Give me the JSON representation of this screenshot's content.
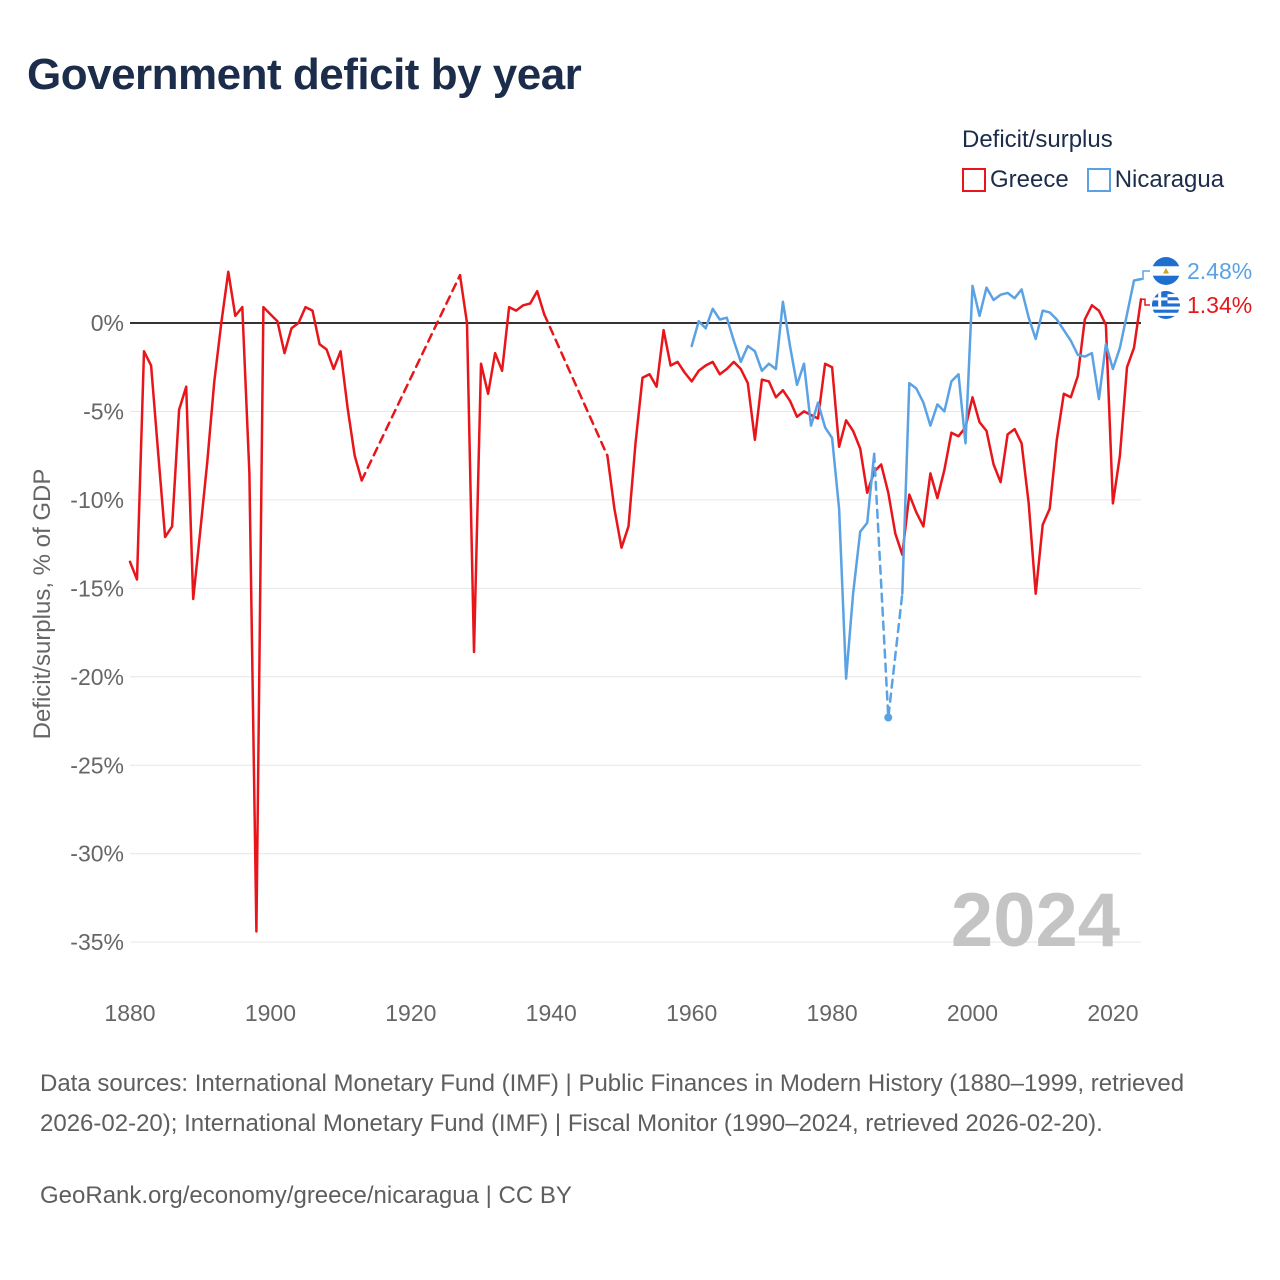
{
  "title": "Government deficit by year",
  "legend": {
    "title": "Deficit/surplus",
    "items": [
      {
        "label": "Greece",
        "color": "#e8161b"
      },
      {
        "label": "Nicaragua",
        "color": "#5ba2e5"
      }
    ]
  },
  "footer": {
    "sources": "Data sources: International Monetary Fund (IMF) | Public Finances in Modern History (1880–1999, retrieved 2026-02-20); International Monetary Fund (IMF) | Fiscal Monitor (1990–2024, retrieved 2026-02-20).",
    "credit": "GeoRank.org/economy/greece/nicaragua | CC BY"
  },
  "chart_data": {
    "type": "line",
    "title": "Government deficit by year",
    "ylabel": "Deficit/surplus, % of GDP",
    "xlabel": "",
    "xlim": [
      1880,
      2024
    ],
    "ylim": [
      -35,
      2.5
    ],
    "x_ticks": [
      1880,
      1900,
      1920,
      1940,
      1960,
      1980,
      2000,
      2020
    ],
    "y_ticks": [
      0,
      -5,
      -10,
      -15,
      -20,
      -25,
      -30,
      -35
    ],
    "y_tick_labels": [
      "0%",
      "-5%",
      "-10%",
      "-15%",
      "-20%",
      "-25%",
      "-30%",
      "-35%"
    ],
    "year_watermark": "2024",
    "grid": true,
    "legend_position": "top-right",
    "series": [
      {
        "name": "Greece",
        "color": "#e8161b",
        "end_label": "1.34%",
        "segments": [
          {
            "style": "solid",
            "points": [
              [
                1880,
                -13.5
              ],
              [
                1881,
                -14.5
              ],
              [
                1882,
                -1.6
              ],
              [
                1883,
                -2.4
              ],
              [
                1884,
                -7.3
              ],
              [
                1885,
                -12.1
              ],
              [
                1886,
                -11.5
              ],
              [
                1887,
                -4.9
              ],
              [
                1888,
                -3.6
              ],
              [
                1889,
                -15.6
              ],
              [
                1890,
                -11.8
              ],
              [
                1891,
                -7.9
              ],
              [
                1892,
                -3.3
              ],
              [
                1893,
                0.0
              ],
              [
                1894,
                2.9
              ],
              [
                1895,
                0.4
              ],
              [
                1896,
                0.9
              ],
              [
                1897,
                -8.5
              ],
              [
                1898,
                -34.4
              ],
              [
                1899,
                0.9
              ],
              [
                1900,
                0.5
              ],
              [
                1901,
                0.1
              ],
              [
                1902,
                -1.7
              ],
              [
                1903,
                -0.3
              ],
              [
                1904,
                0.0
              ],
              [
                1905,
                0.9
              ],
              [
                1906,
                0.7
              ],
              [
                1907,
                -1.2
              ],
              [
                1908,
                -1.5
              ],
              [
                1909,
                -2.6
              ],
              [
                1910,
                -1.6
              ],
              [
                1911,
                -4.8
              ],
              [
                1912,
                -7.5
              ],
              [
                1913,
                -8.9
              ]
            ]
          },
          {
            "style": "dashed",
            "points": [
              [
                1913,
                -8.9
              ],
              [
                1927,
                2.7
              ]
            ]
          },
          {
            "style": "solid",
            "points": [
              [
                1927,
                2.7
              ],
              [
                1928,
                0.0
              ],
              [
                1929,
                -18.6
              ],
              [
                1930,
                -2.3
              ],
              [
                1931,
                -4.0
              ],
              [
                1932,
                -1.7
              ],
              [
                1933,
                -2.7
              ],
              [
                1934,
                0.9
              ],
              [
                1935,
                0.7
              ],
              [
                1936,
                1.0
              ],
              [
                1937,
                1.1
              ],
              [
                1938,
                1.8
              ],
              [
                1939,
                0.5
              ]
            ]
          },
          {
            "style": "dashed",
            "points": [
              [
                1939,
                0.5
              ],
              [
                1948,
                -7.5
              ]
            ]
          },
          {
            "style": "solid",
            "points": [
              [
                1948,
                -7.5
              ],
              [
                1949,
                -10.5
              ],
              [
                1950,
                -12.7
              ],
              [
                1951,
                -11.5
              ],
              [
                1952,
                -6.8
              ],
              [
                1953,
                -3.1
              ],
              [
                1954,
                -2.9
              ],
              [
                1955,
                -3.6
              ],
              [
                1956,
                -0.4
              ],
              [
                1957,
                -2.4
              ],
              [
                1958,
                -2.2
              ],
              [
                1959,
                -2.8
              ],
              [
                1960,
                -3.3
              ],
              [
                1961,
                -2.7
              ],
              [
                1962,
                -2.4
              ],
              [
                1963,
                -2.2
              ],
              [
                1964,
                -2.9
              ],
              [
                1965,
                -2.6
              ],
              [
                1966,
                -2.2
              ],
              [
                1967,
                -2.6
              ],
              [
                1968,
                -3.4
              ],
              [
                1969,
                -6.6
              ],
              [
                1970,
                -3.2
              ],
              [
                1971,
                -3.3
              ],
              [
                1972,
                -4.2
              ],
              [
                1973,
                -3.8
              ],
              [
                1974,
                -4.4
              ],
              [
                1975,
                -5.3
              ],
              [
                1976,
                -5.0
              ],
              [
                1977,
                -5.2
              ],
              [
                1978,
                -5.4
              ],
              [
                1979,
                -2.3
              ],
              [
                1980,
                -2.5
              ],
              [
                1981,
                -7.0
              ],
              [
                1982,
                -5.5
              ],
              [
                1983,
                -6.1
              ],
              [
                1984,
                -7.1
              ],
              [
                1985,
                -9.6
              ],
              [
                1986,
                -8.4
              ],
              [
                1987,
                -8.0
              ],
              [
                1988,
                -9.6
              ],
              [
                1989,
                -11.9
              ],
              [
                1990,
                -13.1
              ],
              [
                1991,
                -9.7
              ],
              [
                1992,
                -10.7
              ],
              [
                1993,
                -11.5
              ],
              [
                1994,
                -8.5
              ],
              [
                1995,
                -9.9
              ],
              [
                1996,
                -8.3
              ],
              [
                1997,
                -6.2
              ],
              [
                1998,
                -6.4
              ],
              [
                1999,
                -5.9
              ],
              [
                2000,
                -4.2
              ],
              [
                2001,
                -5.6
              ],
              [
                2002,
                -6.1
              ],
              [
                2003,
                -8.0
              ],
              [
                2004,
                -9.0
              ],
              [
                2005,
                -6.3
              ],
              [
                2006,
                -6.0
              ],
              [
                2007,
                -6.8
              ],
              [
                2008,
                -10.2
              ],
              [
                2009,
                -15.3
              ],
              [
                2010,
                -11.4
              ],
              [
                2011,
                -10.5
              ],
              [
                2012,
                -6.6
              ],
              [
                2013,
                -4.0
              ],
              [
                2014,
                -4.2
              ],
              [
                2015,
                -3.0
              ],
              [
                2016,
                0.2
              ],
              [
                2017,
                1.0
              ],
              [
                2018,
                0.7
              ],
              [
                2019,
                -0.1
              ],
              [
                2020,
                -10.2
              ],
              [
                2021,
                -7.5
              ],
              [
                2022,
                -2.5
              ],
              [
                2023,
                -1.4
              ],
              [
                2024,
                1.34
              ]
            ]
          }
        ]
      },
      {
        "name": "Nicaragua",
        "color": "#5ba2e5",
        "end_label": "2.48%",
        "segments": [
          {
            "style": "solid",
            "points": [
              [
                1960,
                -1.3
              ],
              [
                1961,
                0.1
              ],
              [
                1962,
                -0.3
              ],
              [
                1963,
                0.8
              ],
              [
                1964,
                0.2
              ],
              [
                1965,
                0.3
              ],
              [
                1966,
                -1.0
              ],
              [
                1967,
                -2.2
              ],
              [
                1968,
                -1.3
              ],
              [
                1969,
                -1.6
              ],
              [
                1970,
                -2.7
              ],
              [
                1971,
                -2.3
              ],
              [
                1972,
                -2.6
              ],
              [
                1973,
                1.2
              ],
              [
                1974,
                -1.3
              ],
              [
                1975,
                -3.5
              ],
              [
                1976,
                -2.3
              ],
              [
                1977,
                -5.8
              ],
              [
                1978,
                -4.5
              ],
              [
                1979,
                -5.9
              ],
              [
                1980,
                -6.5
              ],
              [
                1981,
                -10.5
              ],
              [
                1982,
                -20.1
              ],
              [
                1983,
                -15.3
              ],
              [
                1984,
                -11.8
              ],
              [
                1985,
                -11.3
              ],
              [
                1986,
                -7.4
              ]
            ]
          },
          {
            "style": "dashed",
            "points": [
              [
                1986,
                -7.4
              ],
              [
                1988,
                -22.3
              ],
              [
                1990,
                -15.3
              ]
            ]
          },
          {
            "style": "solid",
            "points": [
              [
                1990,
                -15.3
              ],
              [
                1991,
                -3.4
              ],
              [
                1992,
                -3.7
              ],
              [
                1993,
                -4.5
              ],
              [
                1994,
                -5.8
              ],
              [
                1995,
                -4.6
              ],
              [
                1996,
                -5.0
              ],
              [
                1997,
                -3.3
              ],
              [
                1998,
                -2.9
              ],
              [
                1999,
                -6.8
              ],
              [
                2000,
                2.1
              ],
              [
                2001,
                0.4
              ],
              [
                2002,
                2.0
              ],
              [
                2003,
                1.3
              ],
              [
                2004,
                1.6
              ],
              [
                2005,
                1.7
              ],
              [
                2006,
                1.4
              ],
              [
                2007,
                1.9
              ],
              [
                2008,
                0.3
              ],
              [
                2009,
                -0.9
              ],
              [
                2010,
                0.7
              ],
              [
                2011,
                0.6
              ],
              [
                2012,
                0.2
              ],
              [
                2013,
                -0.4
              ],
              [
                2014,
                -1.0
              ],
              [
                2015,
                -1.8
              ],
              [
                2016,
                -1.9
              ],
              [
                2017,
                -1.7
              ],
              [
                2018,
                -4.3
              ],
              [
                2019,
                -1.2
              ],
              [
                2020,
                -2.6
              ],
              [
                2021,
                -1.4
              ],
              [
                2022,
                0.5
              ],
              [
                2023,
                2.4
              ],
              [
                2024,
                2.48
              ]
            ]
          }
        ],
        "markers": [
          [
            1988,
            -22.3
          ]
        ]
      }
    ]
  }
}
